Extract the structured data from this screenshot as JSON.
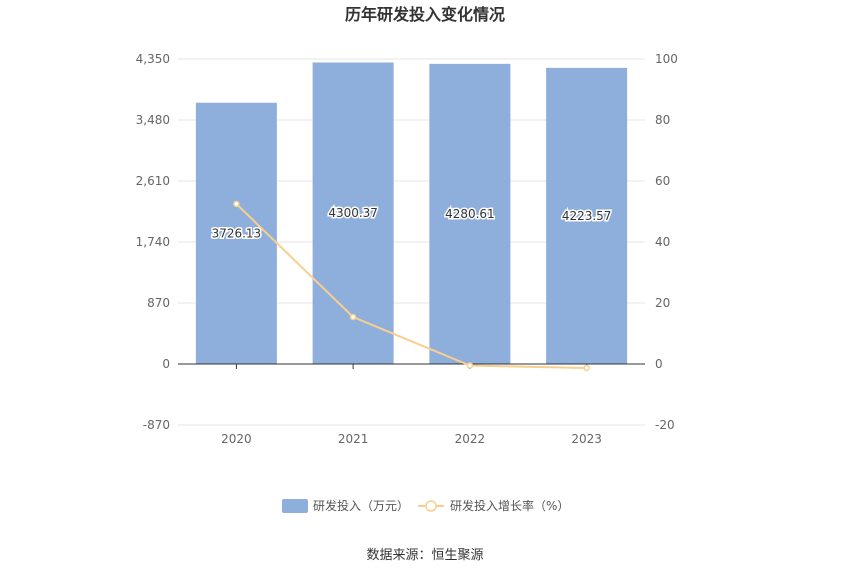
{
  "title": "历年研发投入变化情况",
  "source": "数据来源：恒生聚源",
  "colors": {
    "bar": "#8eaedb",
    "line": "#f7cf8f",
    "axis": "#333333",
    "grid": "#e6e6e6"
  },
  "chart_data": {
    "type": "bar",
    "title": "历年研发投入变化情况",
    "categories": [
      "2020",
      "2021",
      "2022",
      "2023"
    ],
    "series": [
      {
        "name": "研发投入（万元）",
        "type": "bar",
        "axis": "left",
        "values": [
          3726.13,
          4300.37,
          4280.61,
          4223.57
        ],
        "labels": [
          "3726.13",
          "4300.37",
          "4280.61",
          "4223.57"
        ]
      },
      {
        "name": "研发投入增长率（%）",
        "type": "line",
        "axis": "right",
        "values": [
          52.5,
          15.4,
          -0.5,
          -1.3
        ]
      }
    ],
    "y_left": {
      "min": -870,
      "max": 4350,
      "ticks": [
        -870,
        0,
        870,
        1740,
        2610,
        3480,
        4350
      ],
      "tick_labels": [
        "-870",
        "0",
        "870",
        "1,740",
        "2,610",
        "3,480",
        "4,350"
      ]
    },
    "y_right": {
      "min": -20,
      "max": 100,
      "ticks": [
        -20,
        0,
        20,
        40,
        60,
        80,
        100
      ],
      "tick_labels": [
        "-20",
        "0",
        "20",
        "40",
        "60",
        "80",
        "100"
      ]
    },
    "grid": true,
    "legend": "bottom-center"
  }
}
